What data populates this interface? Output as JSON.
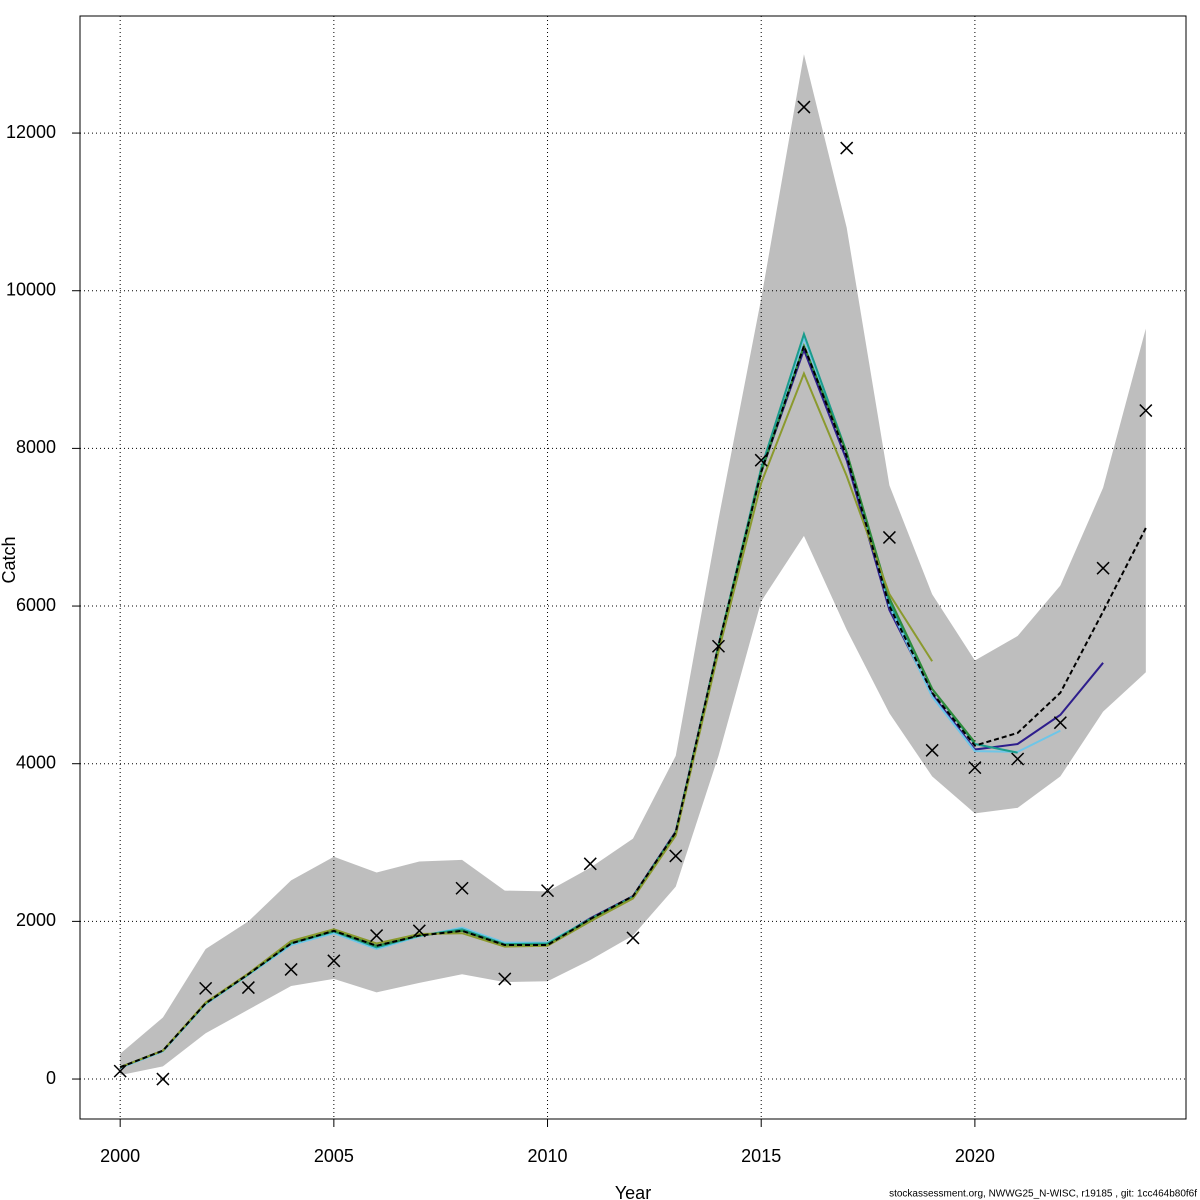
{
  "chart_data": {
    "type": "line",
    "x_label": "Year",
    "y_label": "Catch",
    "footer": "stockassessment.org, NWWG25_N-WISC, r19185 , git: 1cc464b80f6f",
    "x": [
      2000,
      2001,
      2002,
      2003,
      2004,
      2005,
      2006,
      2007,
      2008,
      2009,
      2010,
      2011,
      2012,
      2013,
      2014,
      2015,
      2016,
      2017,
      2018,
      2019,
      2020,
      2021,
      2022,
      2023,
      2024
    ],
    "xlim": [
      1999.06,
      2024.94
    ],
    "xticks": [
      2000,
      2005,
      2010,
      2015,
      2020
    ],
    "ylim": [
      -507,
      13485
    ],
    "yticks": [
      0,
      2000,
      4000,
      6000,
      8000,
      10000,
      12000
    ],
    "grid": true,
    "band": {
      "color": "#bebebe",
      "upper": [
        320,
        780,
        1650,
        2000,
        2520,
        2820,
        2620,
        2760,
        2780,
        2390,
        2380,
        2680,
        3050,
        4100,
        7100,
        9900,
        13000,
        10800,
        7530,
        6150,
        5310,
        5620,
        6260,
        7500,
        9520
      ],
      "lower": [
        50,
        160,
        580,
        880,
        1180,
        1270,
        1100,
        1220,
        1330,
        1230,
        1240,
        1510,
        1820,
        2440,
        4100,
        6060,
        6890,
        5700,
        4640,
        3840,
        3370,
        3440,
        3840,
        4660,
        5160
      ]
    },
    "series": [
      {
        "color": "#2e1e8c",
        "values": [
          150,
          360,
          960,
          1330,
          1720,
          1880,
          1690,
          1820,
          1890,
          1710,
          1710,
          2040,
          2320,
          3140,
          5500,
          7700,
          9250,
          7850,
          5950,
          4880,
          4180,
          4250,
          4620,
          5280,
          null
        ]
      },
      {
        "color": "#6ec6e8",
        "values": [
          140,
          350,
          950,
          1320,
          1700,
          1850,
          1650,
          1810,
          1920,
          1730,
          1730,
          2030,
          2310,
          3120,
          5480,
          7720,
          9400,
          7950,
          6000,
          4850,
          4160,
          4150,
          4420,
          null,
          null
        ]
      },
      {
        "color": "#1a9c8c",
        "values": [
          150,
          360,
          960,
          1330,
          1720,
          1870,
          1670,
          1820,
          1900,
          1710,
          1720,
          2030,
          2310,
          3130,
          5500,
          7750,
          9450,
          7950,
          6050,
          4950,
          4250,
          4140,
          null,
          null,
          null
        ]
      },
      {
        "color": "#2e8b3a",
        "values": [
          150,
          360,
          960,
          1330,
          1730,
          1880,
          1690,
          1820,
          1880,
          1700,
          1700,
          2020,
          2300,
          3120,
          5480,
          7700,
          9300,
          7950,
          6100,
          4950,
          4270,
          null,
          null,
          null,
          null
        ]
      },
      {
        "color": "#8b9a2e",
        "values": [
          150,
          360,
          970,
          1340,
          1750,
          1900,
          1720,
          1840,
          1850,
          1680,
          1690,
          2000,
          2290,
          3090,
          5420,
          7560,
          8950,
          7650,
          6150,
          5300,
          null,
          null,
          null,
          null,
          null
        ]
      },
      {
        "color": "#000000",
        "style": "dashed",
        "values": [
          150,
          360,
          960,
          1330,
          1720,
          1880,
          1690,
          1820,
          1880,
          1700,
          1700,
          2030,
          2320,
          3130,
          5500,
          7700,
          9300,
          7900,
          6000,
          4900,
          4230,
          4390,
          4900,
          5930,
          6990
        ]
      }
    ],
    "observed": {
      "color": "#000000",
      "values": [
        100,
        0,
        1150,
        1160,
        1390,
        1500,
        1820,
        1880,
        2420,
        1270,
        2390,
        2730,
        1790,
        2830,
        5490,
        7850,
        12330,
        11810,
        6870,
        4170,
        3950,
        4060,
        4520,
        6480,
        8480
      ]
    }
  }
}
